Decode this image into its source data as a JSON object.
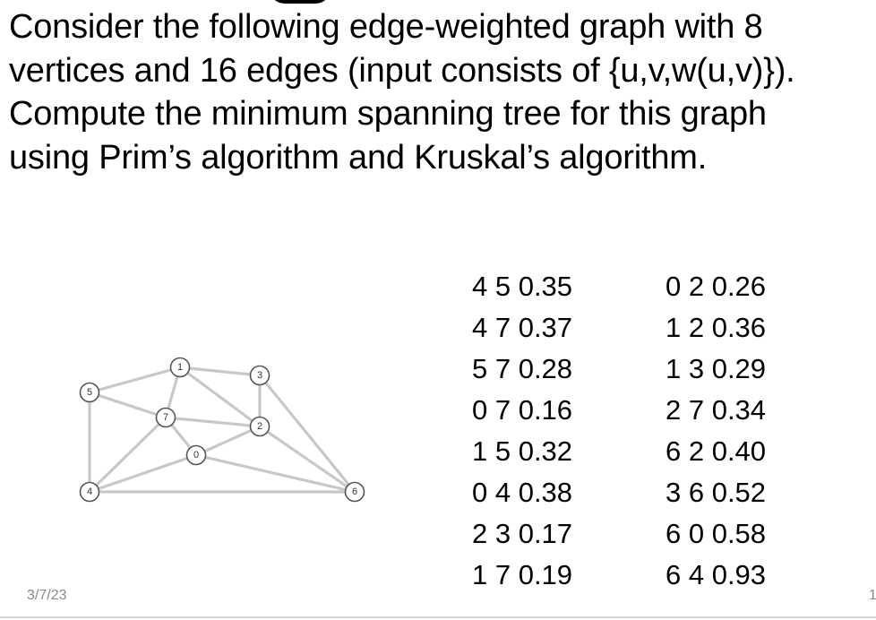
{
  "question_lines": [
    "Consider the following edge-weighted graph with 8",
    "vertices and 16 edges (input consists of {u,v,w(u,v)}).",
    "Compute the minimum spanning tree for this graph",
    "using Prim’s algorithm and Kruskal’s algorithm."
  ],
  "graph": {
    "nodes": [
      "0",
      "1",
      "2",
      "3",
      "4",
      "5",
      "6",
      "7"
    ]
  },
  "edge_list": {
    "left": [
      "4 5 0.35",
      "4 7 0.37",
      "5 7 0.28",
      "0 7 0.16",
      "1 5 0.32",
      "0 4 0.38",
      "2 3 0.17",
      "1 7 0.19"
    ],
    "right": [
      "0 2 0.26",
      "1 2 0.36",
      "1 3 0.29",
      "2 7 0.34",
      "6 2 0.40",
      "3 6 0.52",
      "6 0 0.58",
      "6 4 0.93"
    ]
  },
  "footer": {
    "date": "3/7/23",
    "page": "1"
  }
}
